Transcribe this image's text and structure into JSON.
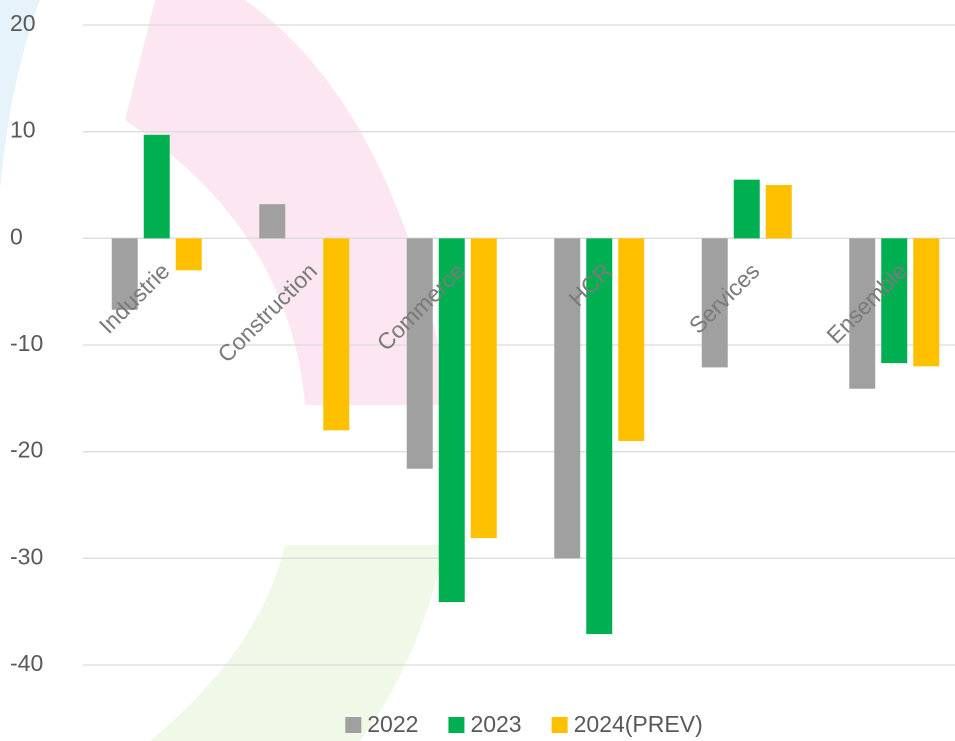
{
  "chart_data": {
    "type": "bar",
    "categories": [
      "Industrie",
      "Construction",
      "Commerce",
      "HCR",
      "Services",
      "Ensemble"
    ],
    "series": [
      {
        "name": "2022",
        "color": "#a0a0a0",
        "values": [
          -6.7,
          3.2,
          -21.6,
          -30,
          -12.1,
          -14.1
        ]
      },
      {
        "name": "2023",
        "color": "#00b050",
        "values": [
          9.7,
          null,
          -34.1,
          -37.1,
          5.5,
          -11.7
        ]
      },
      {
        "name": "2024(PREV)",
        "color": "#ffc000",
        "values": [
          -3.0,
          -18,
          -28.1,
          -19.0,
          5.0,
          -12.0
        ]
      }
    ],
    "ylim": [
      -40,
      20
    ],
    "yticks": [
      -40,
      -30,
      -20,
      -10,
      0,
      10,
      20
    ],
    "grid": true,
    "legend": "bottom"
  }
}
